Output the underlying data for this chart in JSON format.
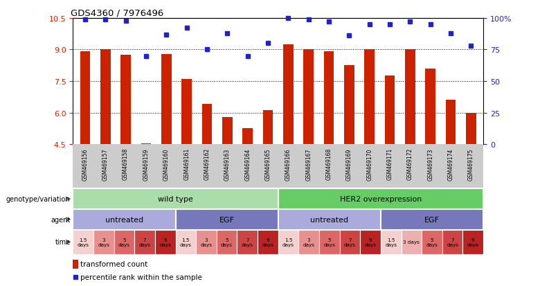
{
  "title": "GDS4360 / 7976496",
  "samples": [
    "GSM469156",
    "GSM469157",
    "GSM469158",
    "GSM469159",
    "GSM469160",
    "GSM469161",
    "GSM469162",
    "GSM469163",
    "GSM469164",
    "GSM469165",
    "GSM469166",
    "GSM469167",
    "GSM469168",
    "GSM469169",
    "GSM469170",
    "GSM469171",
    "GSM469172",
    "GSM469173",
    "GSM469174",
    "GSM469175"
  ],
  "bar_values": [
    8.9,
    9.0,
    8.75,
    4.55,
    8.8,
    7.6,
    6.4,
    5.8,
    5.25,
    6.1,
    9.25,
    9.0,
    8.9,
    8.25,
    9.0,
    7.75,
    9.0,
    8.1,
    6.6,
    6.0
  ],
  "dot_values": [
    99,
    99,
    98,
    70,
    87,
    92,
    75,
    88,
    70,
    80,
    100,
    99,
    97,
    86,
    95,
    95,
    97,
    95,
    88,
    78
  ],
  "ylim_left": [
    4.5,
    10.5
  ],
  "ylim_right": [
    0,
    100
  ],
  "yticks_left": [
    4.5,
    6.0,
    7.5,
    9.0,
    10.5
  ],
  "yticks_right": [
    0,
    25,
    50,
    75,
    100
  ],
  "ytick_labels_right": [
    "0",
    "25",
    "50",
    "75",
    "100%"
  ],
  "bar_color": "#cc2200",
  "dot_color": "#2222cc",
  "background_color": "#ffffff",
  "genotype_row": [
    {
      "label": "wild type",
      "start": 0,
      "end": 10,
      "color": "#aaddaa"
    },
    {
      "label": "HER2 overexpression",
      "start": 10,
      "end": 20,
      "color": "#66cc66"
    }
  ],
  "agent_row": [
    {
      "label": "untreated",
      "start": 0,
      "end": 5,
      "color": "#aaaadd"
    },
    {
      "label": "EGF",
      "start": 5,
      "end": 10,
      "color": "#7777bb"
    },
    {
      "label": "untreated",
      "start": 10,
      "end": 15,
      "color": "#aaaadd"
    },
    {
      "label": "EGF",
      "start": 15,
      "end": 20,
      "color": "#7777bb"
    }
  ],
  "time_labels": [
    "1.5\ndays",
    "3\ndays",
    "5\ndays",
    "7\ndays",
    "9\ndays",
    "1.5\ndays",
    "3\ndays",
    "5\ndays",
    "7\ndays",
    "9\ndays",
    "1.5\ndays",
    "3\ndays",
    "5\ndays",
    "7\ndays",
    "9\ndays",
    "1.5\ndays",
    "3 days",
    "5\ndays",
    "7\ndays",
    "9\ndays"
  ],
  "time_colors": [
    "#f5d0d0",
    "#e89090",
    "#dd6666",
    "#cc4444",
    "#bb2222",
    "#f5d0d0",
    "#e89090",
    "#dd6666",
    "#cc4444",
    "#bb2222",
    "#f5d0d0",
    "#e89090",
    "#dd6666",
    "#cc4444",
    "#bb2222",
    "#f5d0d0",
    "#edb0b0",
    "#dd6666",
    "#cc4444",
    "#bb2222"
  ],
  "row_labels": [
    "genotype/variation",
    "agent",
    "time"
  ],
  "legend_bar_label": "transformed count",
  "legend_dot_label": "percentile rank within the sample",
  "sample_bg_color": "#cccccc"
}
